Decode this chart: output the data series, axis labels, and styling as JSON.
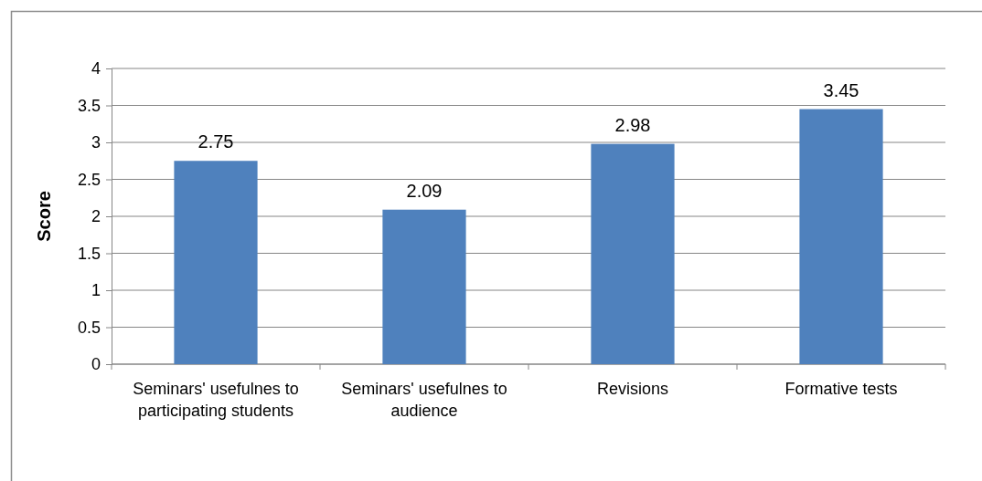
{
  "chart_data": {
    "type": "bar",
    "ylabel": "Score",
    "categories": [
      "Seminars' usefulnes to participating students",
      "Seminars' usefulnes to audience",
      "Revisions",
      "Formative tests"
    ],
    "values": [
      2.75,
      2.09,
      2.98,
      3.45
    ],
    "color": "#4f81bd",
    "ylim": [
      0,
      4
    ],
    "yticks": [
      0,
      0.5,
      1,
      1.5,
      2,
      2.5,
      3,
      3.5,
      4
    ],
    "grid": "y",
    "data_labels": true
  }
}
